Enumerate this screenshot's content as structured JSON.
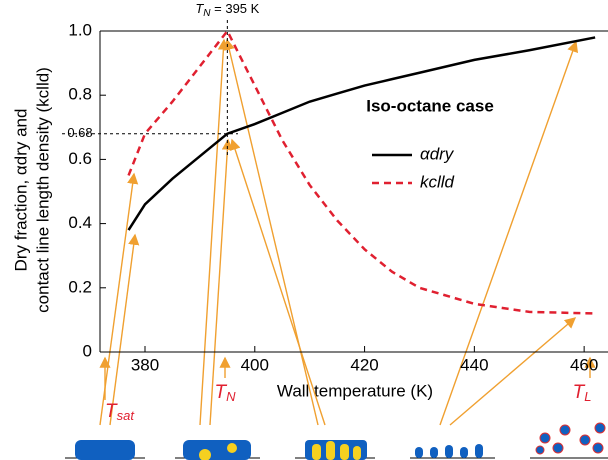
{
  "chart_data": {
    "type": "line",
    "title": "Iso-octane case",
    "xlabel": "Wall temperature (K)",
    "ylabel": [
      "Dry fraction, αdry and",
      "contact line length density (kclld)"
    ],
    "x": [
      377,
      380,
      385,
      390,
      395,
      400,
      405,
      410,
      415,
      420,
      425,
      430,
      440,
      450,
      462
    ],
    "series": [
      {
        "name": "αdry",
        "color": "#000000",
        "dash": false,
        "values": [
          0.38,
          0.46,
          0.54,
          0.61,
          0.68,
          0.71,
          0.745,
          0.78,
          0.805,
          0.83,
          0.85,
          0.87,
          0.91,
          0.94,
          0.98
        ]
      },
      {
        "name": "kclld",
        "color": "#e02030",
        "dash": true,
        "values": [
          0.55,
          0.68,
          0.78,
          0.89,
          1.0,
          0.83,
          0.66,
          0.52,
          0.41,
          0.32,
          0.25,
          0.2,
          0.15,
          0.125,
          0.12
        ]
      }
    ],
    "xlim": [
      371.8,
      463.8
    ],
    "ylim": [
      0,
      1
    ],
    "xticks": [
      380,
      400,
      420,
      440,
      460
    ],
    "yticks": [
      0,
      0.2,
      0.4,
      0.6,
      0.8,
      {
        "value": 1,
        "label": "1.0"
      }
    ],
    "marker_y": {
      "value": 0.68,
      "label": "0.68"
    },
    "marker_x": {
      "value": 395,
      "symbol": "T",
      "sub": "N",
      "label": " = 395 K"
    },
    "bottom_labels": [
      {
        "symbol": "T",
        "sub": "sat"
      },
      {
        "symbol": "T",
        "sub": "N"
      },
      {
        "symbol": "T",
        "sub": "L"
      }
    ]
  }
}
